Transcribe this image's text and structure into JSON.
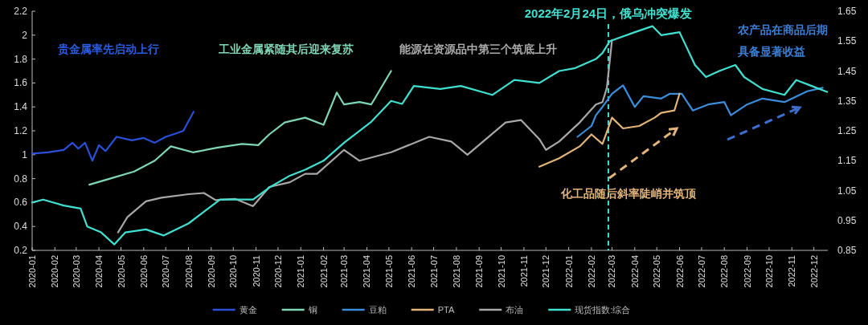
{
  "chart_data": {
    "type": "line",
    "xlim": [
      "2020-01-01",
      "2022-12-20"
    ],
    "xticks": [
      "2020-01",
      "2020-02",
      "2020-03",
      "2020-04",
      "2020-05",
      "2020-06",
      "2020-07",
      "2020-08",
      "2020-09",
      "2020-10",
      "2020-11",
      "2020-12",
      "2021-01",
      "2021-02",
      "2021-03",
      "2021-04",
      "2021-05",
      "2021-06",
      "2021-07",
      "2021-08",
      "2021-09",
      "2021-10",
      "2021-11",
      "2021-12",
      "2022-01",
      "2022-02",
      "2022-03",
      "2022-04",
      "2022-05",
      "2022-06",
      "2022-07",
      "2022-08",
      "2022-09",
      "2022-10",
      "2022-11",
      "2022-12"
    ],
    "ylim": [
      0.2,
      2.2
    ],
    "yticks": [
      0.2,
      0.4,
      0.6,
      0.8,
      1,
      1.2,
      1.4,
      1.6,
      1.8,
      2,
      2.2
    ],
    "y2lim": [
      0.85,
      1.65
    ],
    "y2ticks": [
      0.85,
      0.95,
      1.05,
      1.15,
      1.25,
      1.35,
      1.45,
      1.55,
      1.65
    ],
    "grid": false,
    "legend": "bottom",
    "line_style": "solid",
    "marker": "none",
    "series": [
      {
        "name": "黄金",
        "color": "#2b4fd8",
        "x": [
          "2020-01-01",
          "2020-01-22",
          "2020-02-13",
          "2020-02-25",
          "2020-03-04",
          "2020-03-13",
          "2020-03-23",
          "2020-04-01",
          "2020-04-10",
          "2020-04-25",
          "2020-05-16",
          "2020-06-01",
          "2020-06-16",
          "2020-07-01",
          "2020-07-16",
          "2020-07-25",
          "2020-08-08"
        ],
        "values": [
          1.01,
          1.02,
          1.04,
          1.1,
          1.05,
          1.1,
          0.95,
          1.08,
          1.03,
          1.15,
          1.12,
          1.14,
          1.1,
          1.15,
          1.18,
          1.2,
          1.36
        ]
      },
      {
        "name": "铜",
        "color": "#7fd6b5",
        "x": [
          "2020-03-19",
          "2020-04-16",
          "2020-05-19",
          "2020-06-16",
          "2020-07-08",
          "2020-08-07",
          "2020-09-10",
          "2020-10-13",
          "2020-11-04",
          "2020-11-19",
          "2020-12-10",
          "2021-01-07",
          "2021-02-01",
          "2021-02-19",
          "2021-03-01",
          "2021-03-22",
          "2021-04-07",
          "2021-05-04"
        ],
        "values": [
          0.75,
          0.8,
          0.86,
          0.95,
          1.07,
          1.02,
          1.06,
          1.09,
          1.08,
          1.17,
          1.27,
          1.31,
          1.25,
          1.52,
          1.42,
          1.44,
          1.42,
          1.7
        ]
      },
      {
        "name": "豆粕",
        "color": "#3b8ddb",
        "x": [
          "2022-01-13",
          "2022-02-01",
          "2022-02-07",
          "2022-02-16",
          "2022-03-01",
          "2022-03-16",
          "2022-04-01",
          "2022-04-13",
          "2022-05-07",
          "2022-05-19",
          "2022-06-04",
          "2022-06-19",
          "2022-07-10",
          "2022-08-01",
          "2022-08-10",
          "2022-09-01",
          "2022-09-22",
          "2022-10-22",
          "2022-11-22",
          "2022-12-13"
        ],
        "values": [
          1.15,
          1.24,
          1.33,
          1.4,
          1.51,
          1.58,
          1.4,
          1.49,
          1.47,
          1.51,
          1.51,
          1.37,
          1.42,
          1.44,
          1.33,
          1.42,
          1.47,
          1.44,
          1.53,
          1.56
        ]
      },
      {
        "name": "PTA",
        "color": "#e2b47a",
        "x": [
          "2021-11-22",
          "2021-12-19",
          "2022-01-16",
          "2022-02-01",
          "2022-02-16",
          "2022-03-01",
          "2022-03-16",
          "2022-04-07",
          "2022-04-28",
          "2022-05-07",
          "2022-05-25",
          "2022-06-01"
        ],
        "values": [
          0.9,
          0.97,
          1.07,
          1.17,
          1.09,
          1.31,
          1.22,
          1.24,
          1.31,
          1.35,
          1.37,
          1.51
        ]
      },
      {
        "name": "布油",
        "color": "#a8a8a8",
        "x": [
          "2020-04-27",
          "2020-05-10",
          "2020-06-04",
          "2020-06-25",
          "2020-08-01",
          "2020-08-22",
          "2020-09-07",
          "2020-10-04",
          "2020-10-28",
          "2020-11-19",
          "2020-12-17",
          "2021-01-07",
          "2021-01-23",
          "2021-03-01",
          "2021-03-22",
          "2021-05-04",
          "2021-06-25",
          "2021-07-25",
          "2021-08-16",
          "2021-10-07",
          "2021-10-28",
          "2021-11-22",
          "2021-12-01",
          "2021-12-19",
          "2022-01-16",
          "2022-02-07",
          "2022-02-16",
          "2022-02-22",
          "2022-03-01"
        ],
        "values": [
          0.35,
          0.48,
          0.61,
          0.64,
          0.67,
          0.68,
          0.62,
          0.63,
          0.57,
          0.73,
          0.77,
          0.84,
          0.84,
          1.04,
          0.95,
          1.02,
          1.15,
          1.11,
          1.0,
          1.27,
          1.29,
          1.13,
          1.04,
          1.11,
          1.27,
          1.42,
          1.44,
          1.56,
          1.96
        ]
      },
      {
        "name": "现货指数:综合",
        "color": "#3fe0d0",
        "axis": "y2",
        "x": [
          "2020-01-01",
          "2020-01-16",
          "2020-02-13",
          "2020-03-07",
          "2020-03-16",
          "2020-04-04",
          "2020-04-22",
          "2020-05-07",
          "2020-06-04",
          "2020-06-28",
          "2020-08-01",
          "2020-09-13",
          "2020-10-28",
          "2020-11-19",
          "2020-12-17",
          "2021-01-07",
          "2021-02-01",
          "2021-03-01",
          "2021-04-07",
          "2021-05-04",
          "2021-05-19",
          "2021-06-04",
          "2021-07-10",
          "2021-08-07",
          "2021-09-19",
          "2021-10-19",
          "2021-11-22",
          "2021-12-19",
          "2022-01-10",
          "2022-02-07",
          "2022-02-16",
          "2022-02-26",
          "2022-04-01",
          "2022-04-25",
          "2022-05-07",
          "2022-06-01",
          "2022-06-22",
          "2022-07-07",
          "2022-07-25",
          "2022-08-16",
          "2022-08-28",
          "2022-09-22",
          "2022-10-22",
          "2022-11-07",
          "2022-11-28",
          "2022-12-19"
        ],
        "values": [
          1.01,
          1.02,
          1.0,
          0.99,
          0.93,
          0.91,
          0.87,
          0.91,
          0.92,
          0.9,
          0.94,
          1.02,
          1.02,
          1.06,
          1.1,
          1.12,
          1.15,
          1.21,
          1.28,
          1.35,
          1.34,
          1.4,
          1.39,
          1.4,
          1.37,
          1.42,
          1.41,
          1.45,
          1.46,
          1.49,
          1.51,
          1.55,
          1.58,
          1.6,
          1.57,
          1.58,
          1.47,
          1.43,
          1.45,
          1.47,
          1.43,
          1.39,
          1.37,
          1.42,
          1.4,
          1.38
        ]
      }
    ],
    "ref_lines": [
      {
        "axis": "x",
        "value": "2022-02-24",
        "label": "2022年2月24日，俄乌冲突爆发",
        "color": "#3fe0d0",
        "line_style": "dashed"
      }
    ],
    "annotations": [
      "贵金属率先启动上行",
      "工业金属紧随其后迎来复苏",
      "能源在资源品中第三个筑底上升",
      "农产品在商品后期具备显著收益",
      "化工品随后斜率陡峭并筑顶"
    ]
  }
}
